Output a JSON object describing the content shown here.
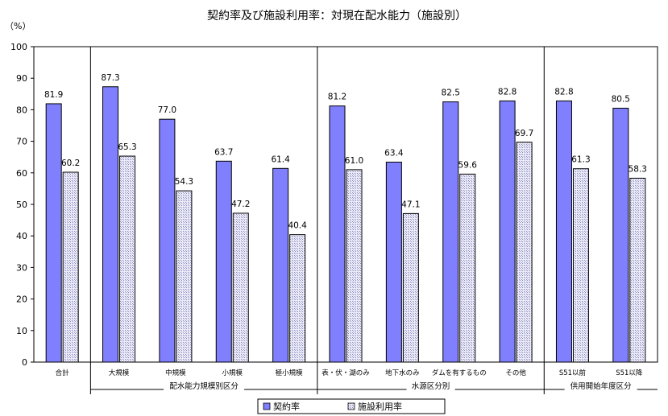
{
  "chart_data": {
    "type": "bar",
    "title": "契約率及び施設利用率：対現在配水能力（施設別）",
    "ylabel": "（%）",
    "ylim": [
      0,
      100
    ],
    "yticks": [
      0,
      10,
      20,
      30,
      40,
      50,
      60,
      70,
      80,
      90,
      100
    ],
    "grid": false,
    "legend_position": "bottom",
    "categories": [
      "合計",
      "大規模",
      "中規模",
      "小規模",
      "極小規模",
      "表・伏・湖のみ",
      "地下水のみ",
      "ダムを有するもの",
      "その他",
      "S51以前",
      "S51以降"
    ],
    "series": [
      {
        "name": "契約率",
        "values": [
          81.9,
          87.3,
          77.0,
          63.7,
          61.4,
          81.2,
          63.4,
          82.5,
          82.8,
          82.8,
          80.5
        ],
        "labels": [
          "81.9",
          "87.3",
          "77.0",
          "63.7",
          "61.4",
          "81.2",
          "63.4",
          "82.5",
          "82.8",
          "82.8",
          "80.5"
        ]
      },
      {
        "name": "施設利用率",
        "values": [
          60.2,
          65.3,
          54.3,
          47.2,
          40.4,
          61.0,
          47.1,
          59.6,
          69.7,
          61.3,
          58.3
        ],
        "labels": [
          "60.2",
          "65.3",
          "54.3",
          "47.2",
          "40.4",
          "61.0",
          "47.1",
          "59.6",
          "69.7",
          "61.3",
          "58.3"
        ]
      }
    ],
    "groups": [
      {
        "label": "配水能力規模別区分",
        "start": 1,
        "end": 4
      },
      {
        "label": "水源区分別",
        "start": 5,
        "end": 8
      },
      {
        "label": "供用開始年度区分",
        "start": 9,
        "end": 10
      }
    ],
    "colors": {
      "series1": "#8080ff",
      "series2": "#e4e4f4",
      "series2_hatch": "#9a9ac8",
      "axis": "#000000"
    }
  }
}
